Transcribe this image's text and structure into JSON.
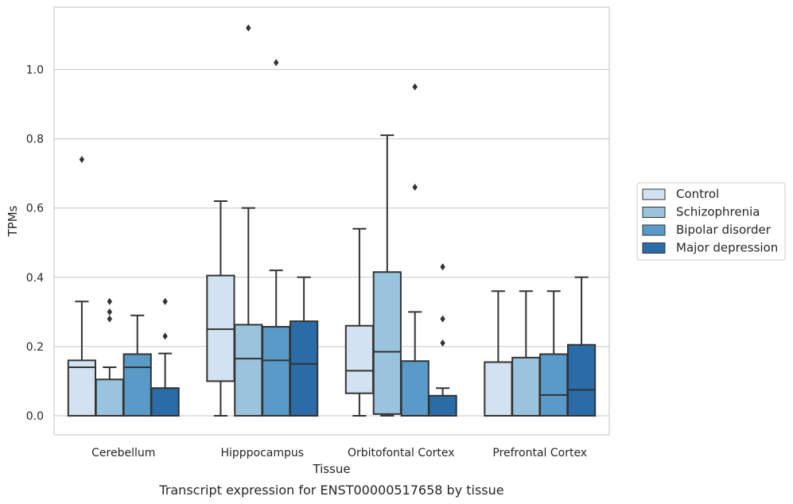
{
  "caption": "Transcript expression for ENST00000517658 by tissue",
  "chart_data": {
    "type": "boxplot",
    "title": "",
    "xlabel": "Tissue",
    "ylabel": "TPMs",
    "ylim": [
      -0.055,
      1.18
    ],
    "yticks": [
      0.0,
      0.2,
      0.4,
      0.6,
      0.8,
      1.0
    ],
    "ytick_labels": [
      "0.0",
      "0.2",
      "0.4",
      "0.6",
      "0.8",
      "1.0"
    ],
    "grid": "horizontal",
    "legend_placement": "right-outside",
    "categories": [
      "Cerebellum",
      "Hipppocampus",
      "Orbitofontal Cortex",
      "Prefrontal Cortex"
    ],
    "series": [
      {
        "name": "Control",
        "color": "#d2e2f1",
        "boxes": [
          {
            "whislo": 0.0,
            "q1": 0.0,
            "med": 0.14,
            "q3": 0.16,
            "whishi": 0.33,
            "fliers": [
              0.74
            ]
          },
          {
            "whislo": 0.0,
            "q1": 0.1,
            "med": 0.25,
            "q3": 0.405,
            "whishi": 0.62,
            "fliers": []
          },
          {
            "whislo": 0.0,
            "q1": 0.065,
            "med": 0.13,
            "q3": 0.26,
            "whishi": 0.54,
            "fliers": []
          },
          {
            "whislo": 0.0,
            "q1": 0.0,
            "med": 0.0,
            "q3": 0.155,
            "whishi": 0.36,
            "fliers": []
          }
        ]
      },
      {
        "name": "Schizophrenia",
        "color": "#9ac3de",
        "boxes": [
          {
            "whislo": 0.0,
            "q1": 0.0,
            "med": 0.0,
            "q3": 0.105,
            "whishi": 0.14,
            "fliers": [
              0.28,
              0.3,
              0.33
            ]
          },
          {
            "whislo": 0.0,
            "q1": 0.0,
            "med": 0.165,
            "q3": 0.263,
            "whishi": 0.6,
            "fliers": [
              1.12
            ]
          },
          {
            "whislo": 0.0,
            "q1": 0.005,
            "med": 0.185,
            "q3": 0.415,
            "whishi": 0.81,
            "fliers": []
          },
          {
            "whislo": 0.0,
            "q1": 0.0,
            "med": 0.0,
            "q3": 0.168,
            "whishi": 0.36,
            "fliers": []
          }
        ]
      },
      {
        "name": "Bipolar disorder",
        "color": "#5a9ac8",
        "boxes": [
          {
            "whislo": 0.0,
            "q1": 0.0,
            "med": 0.14,
            "q3": 0.178,
            "whishi": 0.29,
            "fliers": []
          },
          {
            "whislo": 0.0,
            "q1": 0.0,
            "med": 0.16,
            "q3": 0.257,
            "whishi": 0.42,
            "fliers": [
              1.02
            ]
          },
          {
            "whislo": 0.0,
            "q1": 0.0,
            "med": 0.0,
            "q3": 0.158,
            "whishi": 0.3,
            "fliers": [
              0.66,
              0.95
            ]
          },
          {
            "whislo": 0.0,
            "q1": 0.0,
            "med": 0.06,
            "q3": 0.178,
            "whishi": 0.36,
            "fliers": []
          }
        ]
      },
      {
        "name": "Major depression",
        "color": "#2a6ca7",
        "boxes": [
          {
            "whislo": 0.0,
            "q1": 0.0,
            "med": 0.0,
            "q3": 0.08,
            "whishi": 0.18,
            "fliers": [
              0.23,
              0.33
            ]
          },
          {
            "whislo": 0.0,
            "q1": 0.0,
            "med": 0.15,
            "q3": 0.273,
            "whishi": 0.4,
            "fliers": []
          },
          {
            "whislo": 0.0,
            "q1": 0.0,
            "med": 0.0,
            "q3": 0.058,
            "whishi": 0.08,
            "fliers": [
              0.21,
              0.28,
              0.43
            ]
          },
          {
            "whislo": 0.0,
            "q1": 0.0,
            "med": 0.075,
            "q3": 0.205,
            "whishi": 0.4,
            "fliers": []
          }
        ]
      }
    ]
  }
}
